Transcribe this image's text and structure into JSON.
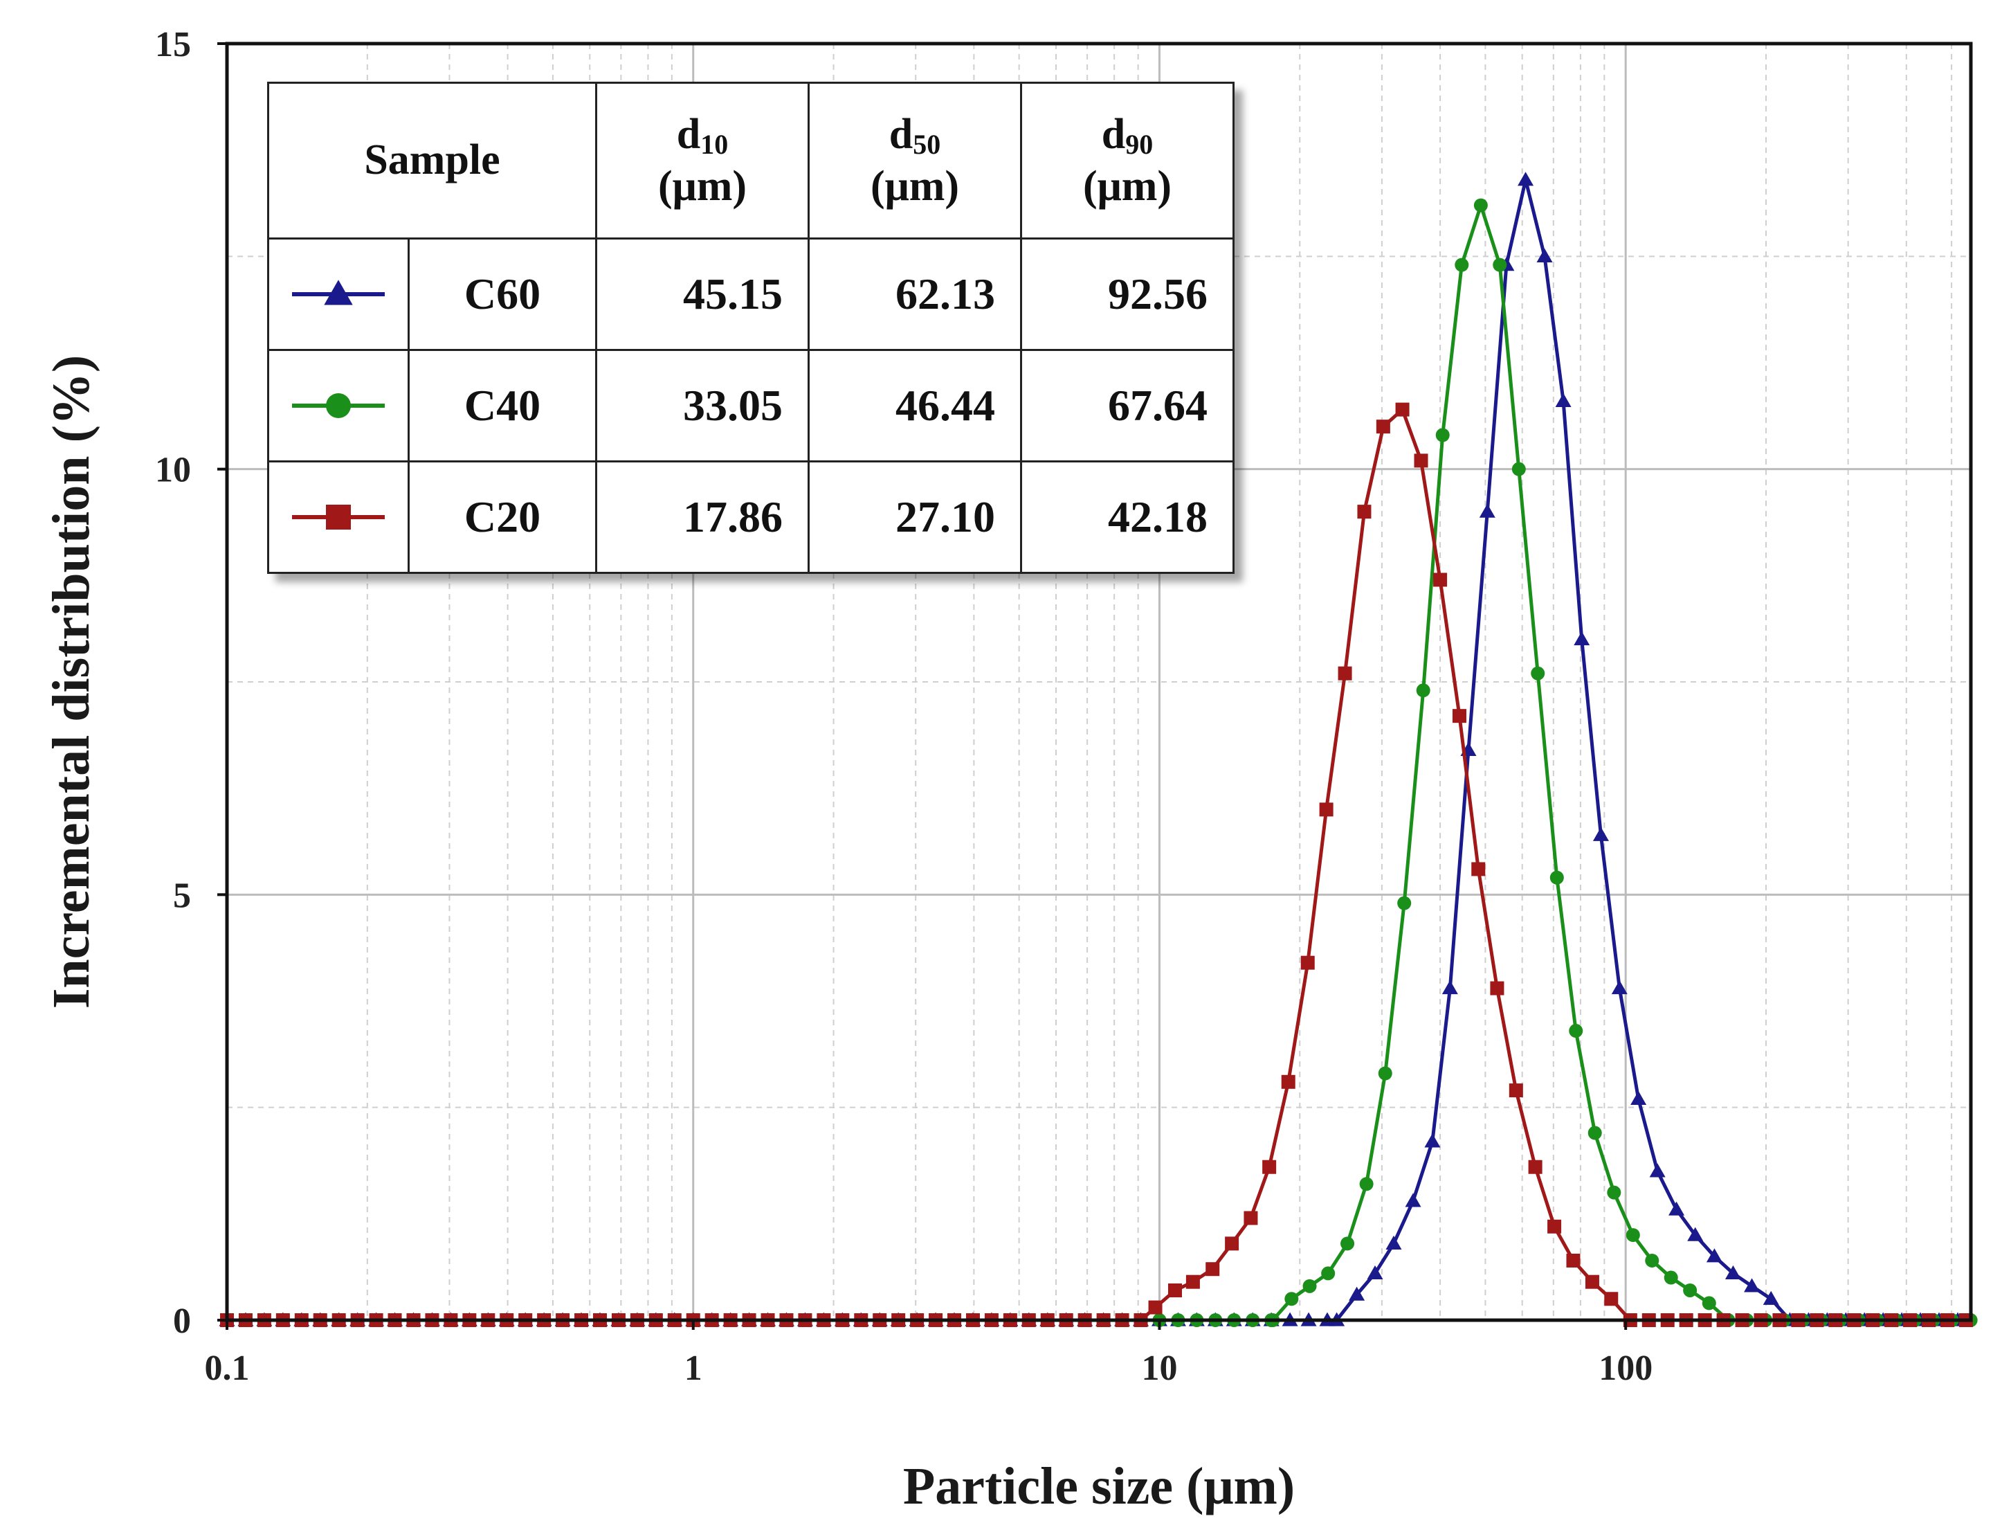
{
  "chart_data": {
    "type": "line",
    "x_scale": "log",
    "xlabel": "Particle size (μm)",
    "ylabel": "Incremental distribution (%)",
    "xlim": [
      0.1,
      550
    ],
    "ylim": [
      0,
      15
    ],
    "x_ticks": [
      {
        "value": 0.1,
        "label": "0.1"
      },
      {
        "value": 1,
        "label": "1"
      },
      {
        "value": 10,
        "label": "10"
      },
      {
        "value": 100,
        "label": "100"
      }
    ],
    "y_ticks": [
      {
        "value": 0,
        "label": "0"
      },
      {
        "value": 5,
        "label": "5"
      },
      {
        "value": 10,
        "label": "10"
      },
      {
        "value": 15,
        "label": "15"
      }
    ],
    "grid": true,
    "legend_placement": "top-left",
    "series": [
      {
        "name": "C60",
        "color": "#1a1a8c",
        "marker": "triangle",
        "points": [
          [
            24.0,
            0
          ],
          [
            26.5,
            0.3
          ],
          [
            29.0,
            0.55
          ],
          [
            31.8,
            0.9
          ],
          [
            35.0,
            1.4
          ],
          [
            38.5,
            2.1
          ],
          [
            42.0,
            3.9
          ],
          [
            46.0,
            6.7
          ],
          [
            50.5,
            9.5
          ],
          [
            55.5,
            12.4
          ],
          [
            61.0,
            13.4
          ],
          [
            67.0,
            12.5
          ],
          [
            73.5,
            10.8
          ],
          [
            80.5,
            8.0
          ],
          [
            88.5,
            5.7
          ],
          [
            97.0,
            3.9
          ],
          [
            106.5,
            2.6
          ],
          [
            117.0,
            1.75
          ],
          [
            128.5,
            1.3
          ],
          [
            141.0,
            1.0
          ],
          [
            155.0,
            0.75
          ],
          [
            170.0,
            0.55
          ],
          [
            186.5,
            0.4
          ],
          [
            205.0,
            0.25
          ],
          [
            225.0,
            0
          ]
        ]
      },
      {
        "name": "C40",
        "color": "#1a8f1a",
        "marker": "circle",
        "points": [
          [
            17.5,
            0
          ],
          [
            19.2,
            0.25
          ],
          [
            21.0,
            0.4
          ],
          [
            23.0,
            0.55
          ],
          [
            25.3,
            0.9
          ],
          [
            27.8,
            1.6
          ],
          [
            30.5,
            2.9
          ],
          [
            33.5,
            4.9
          ],
          [
            36.8,
            7.4
          ],
          [
            40.5,
            10.4
          ],
          [
            44.5,
            12.4
          ],
          [
            48.9,
            13.1
          ],
          [
            53.7,
            12.4
          ],
          [
            59.0,
            10.0
          ],
          [
            64.8,
            7.6
          ],
          [
            71.2,
            5.2
          ],
          [
            78.2,
            3.4
          ],
          [
            85.9,
            2.2
          ],
          [
            94.4,
            1.5
          ],
          [
            103.7,
            1.0
          ],
          [
            113.9,
            0.7
          ],
          [
            125.1,
            0.5
          ],
          [
            137.4,
            0.35
          ],
          [
            151.0,
            0.2
          ],
          [
            165.9,
            0
          ]
        ]
      },
      {
        "name": "C20",
        "color": "#a01818",
        "marker": "square",
        "points": [
          [
            9.8,
            0.15
          ],
          [
            10.8,
            0.35
          ],
          [
            11.8,
            0.45
          ],
          [
            13.0,
            0.6
          ],
          [
            14.3,
            0.9
          ],
          [
            15.7,
            1.2
          ],
          [
            17.2,
            1.8
          ],
          [
            18.9,
            2.8
          ],
          [
            20.8,
            4.2
          ],
          [
            22.8,
            6.0
          ],
          [
            25.0,
            7.6
          ],
          [
            27.5,
            9.5
          ],
          [
            30.2,
            10.5
          ],
          [
            33.2,
            10.7
          ],
          [
            36.4,
            10.1
          ],
          [
            40.0,
            8.7
          ],
          [
            44.0,
            7.1
          ],
          [
            48.3,
            5.3
          ],
          [
            53.0,
            3.9
          ],
          [
            58.2,
            2.7
          ],
          [
            64.0,
            1.8
          ],
          [
            70.3,
            1.1
          ],
          [
            77.2,
            0.7
          ],
          [
            84.8,
            0.45
          ],
          [
            93.1,
            0.25
          ],
          [
            102.3,
            0
          ]
        ]
      }
    ]
  },
  "legend_table": {
    "headers": {
      "sample": "Sample",
      "d10_main": "d",
      "d10_sub": "10",
      "d10_unit": "(μm)",
      "d50_main": "d",
      "d50_sub": "50",
      "d50_unit": "(μm)",
      "d90_main": "d",
      "d90_sub": "90",
      "d90_unit": "(μm)"
    },
    "rows": [
      {
        "name": "C60",
        "d10": "45.15",
        "d50": "62.13",
        "d90": "92.56",
        "color": "#1a1a8c",
        "marker": "triangle"
      },
      {
        "name": "C40",
        "d10": "33.05",
        "d50": "46.44",
        "d90": "67.64",
        "color": "#1a8f1a",
        "marker": "circle"
      },
      {
        "name": "C20",
        "d10": "17.86",
        "d50": "27.10",
        "d90": "42.18",
        "color": "#a01818",
        "marker": "square"
      }
    ]
  }
}
